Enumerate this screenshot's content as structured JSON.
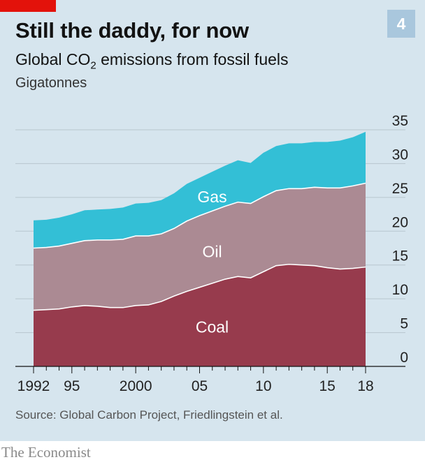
{
  "header": {
    "title": "Still the daddy, for now",
    "subtitle_prefix": "Global CO",
    "subtitle_sub": "2",
    "subtitle_suffix": " emissions from fossil fuels",
    "unit": "Gigatonnes",
    "chart_number": "4"
  },
  "footer": {
    "source": "Source: Global Carbon Project, Friedlingstein et al.",
    "brand": "The Economist"
  },
  "colors": {
    "panel_bg": "#d6e5ee",
    "coal": "#973b4d",
    "oil": "#ab8a93",
    "gas": "#33bfd6",
    "grid": "#b8c6cf",
    "brand_red": "#e3120b"
  },
  "chart_data": {
    "type": "area",
    "stacked": true,
    "x": [
      1992,
      1993,
      1994,
      1995,
      1996,
      1997,
      1998,
      1999,
      2000,
      2001,
      2002,
      2003,
      2004,
      2005,
      2006,
      2007,
      2008,
      2009,
      2010,
      2011,
      2012,
      2013,
      2014,
      2015,
      2016,
      2017,
      2018
    ],
    "x_tick_values": [
      1992,
      1995,
      2000,
      2005,
      2010,
      2015,
      2018
    ],
    "x_tick_labels": [
      "1992",
      "95",
      "2000",
      "05",
      "10",
      "15",
      "18"
    ],
    "ylim": [
      0,
      35
    ],
    "y_ticks": [
      0,
      5,
      10,
      15,
      20,
      25,
      30,
      35
    ],
    "y_axis_position": "right",
    "grid": true,
    "series": [
      {
        "name": "Coal",
        "values": [
          8.3,
          8.4,
          8.5,
          8.8,
          9.0,
          8.9,
          8.7,
          8.7,
          9.0,
          9.1,
          9.6,
          10.4,
          11.1,
          11.7,
          12.3,
          12.9,
          13.3,
          13.1,
          14.0,
          14.9,
          15.1,
          15.0,
          14.9,
          14.6,
          14.4,
          14.5,
          14.7
        ]
      },
      {
        "name": "Oil",
        "values": [
          9.2,
          9.2,
          9.3,
          9.4,
          9.6,
          9.8,
          10.0,
          10.1,
          10.3,
          10.2,
          10.0,
          10.0,
          10.4,
          10.6,
          10.7,
          10.8,
          11.0,
          11.0,
          11.1,
          11.1,
          11.2,
          11.3,
          11.6,
          11.8,
          12.0,
          12.2,
          12.4
        ]
      },
      {
        "name": "Gas",
        "values": [
          4.1,
          4.1,
          4.2,
          4.3,
          4.5,
          4.5,
          4.6,
          4.7,
          4.8,
          4.9,
          5.0,
          5.2,
          5.5,
          5.6,
          5.8,
          6.0,
          6.2,
          6.0,
          6.5,
          6.6,
          6.7,
          6.7,
          6.7,
          6.8,
          7.0,
          7.2,
          7.6
        ]
      }
    ],
    "x_range": [
      1992,
      2018
    ]
  }
}
